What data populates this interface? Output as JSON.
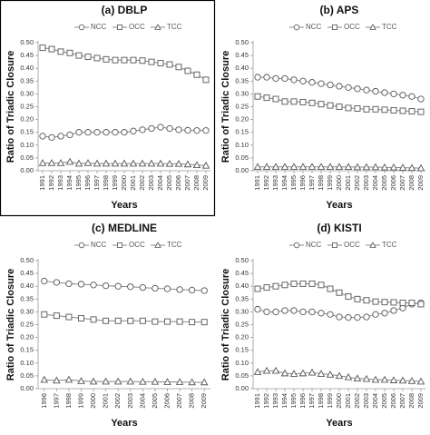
{
  "chart_data": [
    {
      "type": "line",
      "title": "(a) DBLP",
      "y_label": "Ratio of Triadic Closure",
      "x_label": "Years",
      "categories": [
        "1991",
        "1992",
        "1993",
        "1994",
        "1995",
        "1996",
        "1997",
        "1998",
        "1999",
        "2000",
        "2001",
        "2002",
        "2003",
        "2004",
        "2005",
        "2006",
        "2007",
        "2008",
        "2009"
      ],
      "series": [
        {
          "name": "NCC",
          "marker": "circle",
          "color": "#888888",
          "values": [
            0.135,
            0.13,
            0.135,
            0.14,
            0.15,
            0.15,
            0.15,
            0.15,
            0.15,
            0.15,
            0.155,
            0.16,
            0.165,
            0.17,
            0.165,
            0.16,
            0.158,
            0.157,
            0.157
          ]
        },
        {
          "name": "OCC",
          "marker": "square",
          "color": "#888888",
          "values": [
            0.48,
            0.475,
            0.465,
            0.46,
            0.45,
            0.445,
            0.44,
            0.435,
            0.432,
            0.432,
            0.432,
            0.43,
            0.425,
            0.42,
            0.415,
            0.405,
            0.39,
            0.375,
            0.355
          ]
        },
        {
          "name": "TCC",
          "marker": "triangle",
          "color": "#888888",
          "values": [
            0.03,
            0.03,
            0.03,
            0.035,
            0.028,
            0.03,
            0.028,
            0.028,
            0.028,
            0.028,
            0.028,
            0.028,
            0.028,
            0.028,
            0.027,
            0.027,
            0.025,
            0.022,
            0.02
          ]
        }
      ],
      "ylim": [
        0,
        0.5
      ],
      "yticks": [
        {
          "value": 0,
          "label": "0.00"
        },
        {
          "value": 0.05,
          "label": "0.05"
        },
        {
          "value": 0.1,
          "label": "0.10"
        },
        {
          "value": 0.15,
          "label": "0.15"
        },
        {
          "value": 0.2,
          "label": "0.20"
        },
        {
          "value": 0.25,
          "label": "0.25"
        },
        {
          "value": 0.3,
          "label": "0.30"
        },
        {
          "value": 0.35,
          "label": "0.35"
        },
        {
          "value": 0.4,
          "label": "0.40"
        },
        {
          "value": 0.45,
          "label": "0.45"
        },
        {
          "value": 0.5,
          "label": "0.50"
        }
      ],
      "grid": false
    },
    {
      "type": "line",
      "title": "(b) APS",
      "y_label": "Ratio of Triadic Closure",
      "x_label": "Years",
      "categories": [
        "1991",
        "1992",
        "1993",
        "1994",
        "1995",
        "1996",
        "1997",
        "1998",
        "1999",
        "2000",
        "2001",
        "2002",
        "2003",
        "2004",
        "2005",
        "2006",
        "2007",
        "2008",
        "2009"
      ],
      "series": [
        {
          "name": "NCC",
          "marker": "circle",
          "color": "#888888",
          "values": [
            0.365,
            0.365,
            0.36,
            0.36,
            0.355,
            0.35,
            0.345,
            0.34,
            0.335,
            0.33,
            0.325,
            0.32,
            0.315,
            0.31,
            0.305,
            0.3,
            0.295,
            0.29,
            0.28
          ]
        },
        {
          "name": "OCC",
          "marker": "square",
          "color": "#888888",
          "values": [
            0.29,
            0.285,
            0.28,
            0.27,
            0.27,
            0.268,
            0.265,
            0.26,
            0.255,
            0.25,
            0.245,
            0.243,
            0.24,
            0.24,
            0.238,
            0.236,
            0.234,
            0.232,
            0.23
          ]
        },
        {
          "name": "TCC",
          "marker": "triangle",
          "color": "#888888",
          "values": [
            0.015,
            0.015,
            0.015,
            0.015,
            0.015,
            0.015,
            0.015,
            0.015,
            0.015,
            0.015,
            0.015,
            0.014,
            0.014,
            0.014,
            0.013,
            0.013,
            0.012,
            0.011,
            0.01
          ]
        }
      ],
      "ylim": [
        0,
        0.5
      ],
      "yticks": [
        {
          "value": 0,
          "label": "0.00"
        },
        {
          "value": 0.05,
          "label": "0.05"
        },
        {
          "value": 0.1,
          "label": "0.10"
        },
        {
          "value": 0.15,
          "label": "0.15"
        },
        {
          "value": 0.2,
          "label": "0.20"
        },
        {
          "value": 0.25,
          "label": "0.25"
        },
        {
          "value": 0.3,
          "label": "0.30"
        },
        {
          "value": 0.35,
          "label": "0.35"
        },
        {
          "value": 0.4,
          "label": "0.40"
        },
        {
          "value": 0.45,
          "label": "0.45"
        },
        {
          "value": 0.5,
          "label": "0.50"
        }
      ],
      "grid": false
    },
    {
      "type": "line",
      "title": "(c) MEDLINE",
      "y_label": "Ratio of Triadic Closure",
      "x_label": "Years",
      "categories": [
        "1996",
        "1997",
        "1998",
        "1999",
        "2000",
        "2001",
        "2002",
        "2003",
        "2004",
        "2005",
        "2006",
        "2007",
        "2008",
        "2009"
      ],
      "series": [
        {
          "name": "NCC",
          "marker": "circle",
          "color": "#888888",
          "values": [
            0.42,
            0.415,
            0.41,
            0.408,
            0.405,
            0.402,
            0.4,
            0.398,
            0.395,
            0.392,
            0.39,
            0.387,
            0.385,
            0.383
          ]
        },
        {
          "name": "OCC",
          "marker": "square",
          "color": "#888888",
          "values": [
            0.29,
            0.285,
            0.28,
            0.275,
            0.27,
            0.265,
            0.265,
            0.265,
            0.265,
            0.262,
            0.262,
            0.262,
            0.26,
            0.26
          ]
        },
        {
          "name": "TCC",
          "marker": "triangle",
          "color": "#888888",
          "values": [
            0.035,
            0.032,
            0.035,
            0.03,
            0.028,
            0.028,
            0.028,
            0.028,
            0.027,
            0.027,
            0.026,
            0.026,
            0.025,
            0.025
          ]
        }
      ],
      "ylim": [
        0,
        0.5
      ],
      "yticks": [
        {
          "value": 0,
          "label": "0.00"
        },
        {
          "value": 0.05,
          "label": "0.05"
        },
        {
          "value": 0.1,
          "label": "0.10"
        },
        {
          "value": 0.15,
          "label": "0.15"
        },
        {
          "value": 0.2,
          "label": "0.20"
        },
        {
          "value": 0.25,
          "label": "0.25"
        },
        {
          "value": 0.3,
          "label": "0.30"
        },
        {
          "value": 0.35,
          "label": "0.35"
        },
        {
          "value": 0.4,
          "label": "0.40"
        },
        {
          "value": 0.45,
          "label": "0.45"
        },
        {
          "value": 0.5,
          "label": "0.50"
        }
      ],
      "grid": false
    },
    {
      "type": "line",
      "title": "(d) KISTI",
      "y_label": "Ratio of Triadic Closure",
      "x_label": "Years",
      "categories": [
        "1991",
        "1992",
        "1993",
        "1994",
        "1995",
        "1996",
        "1997",
        "1998",
        "1999",
        "2000",
        "2001",
        "2002",
        "2003",
        "2004",
        "2005",
        "2006",
        "2007",
        "2008",
        "2009"
      ],
      "series": [
        {
          "name": "NCC",
          "marker": "circle",
          "color": "#888888",
          "values": [
            0.31,
            0.3,
            0.3,
            0.305,
            0.305,
            0.3,
            0.3,
            0.295,
            0.29,
            0.28,
            0.278,
            0.278,
            0.28,
            0.29,
            0.295,
            0.305,
            0.315,
            0.33,
            0.335
          ]
        },
        {
          "name": "OCC",
          "marker": "square",
          "color": "#888888",
          "values": [
            0.39,
            0.395,
            0.4,
            0.405,
            0.41,
            0.41,
            0.41,
            0.405,
            0.39,
            0.375,
            0.36,
            0.35,
            0.345,
            0.34,
            0.338,
            0.337,
            0.335,
            0.335,
            0.33
          ]
        },
        {
          "name": "TCC",
          "marker": "triangle",
          "color": "#888888",
          "values": [
            0.065,
            0.07,
            0.07,
            0.06,
            0.058,
            0.06,
            0.063,
            0.058,
            0.055,
            0.05,
            0.045,
            0.04,
            0.038,
            0.035,
            0.035,
            0.033,
            0.032,
            0.03,
            0.028
          ]
        }
      ],
      "ylim": [
        0,
        0.5
      ],
      "yticks": [
        {
          "value": 0,
          "label": "0.00"
        },
        {
          "value": 0.05,
          "label": "0.05"
        },
        {
          "value": 0.1,
          "label": "0.10"
        },
        {
          "value": 0.15,
          "label": "0.15"
        },
        {
          "value": 0.2,
          "label": "0.20"
        },
        {
          "value": 0.25,
          "label": "0.25"
        },
        {
          "value": 0.3,
          "label": "0.30"
        },
        {
          "value": 0.35,
          "label": "0.35"
        },
        {
          "value": 0.4,
          "label": "0.40"
        },
        {
          "value": 0.45,
          "label": "0.45"
        },
        {
          "value": 0.5,
          "label": "0.50"
        }
      ],
      "grid": false
    }
  ]
}
